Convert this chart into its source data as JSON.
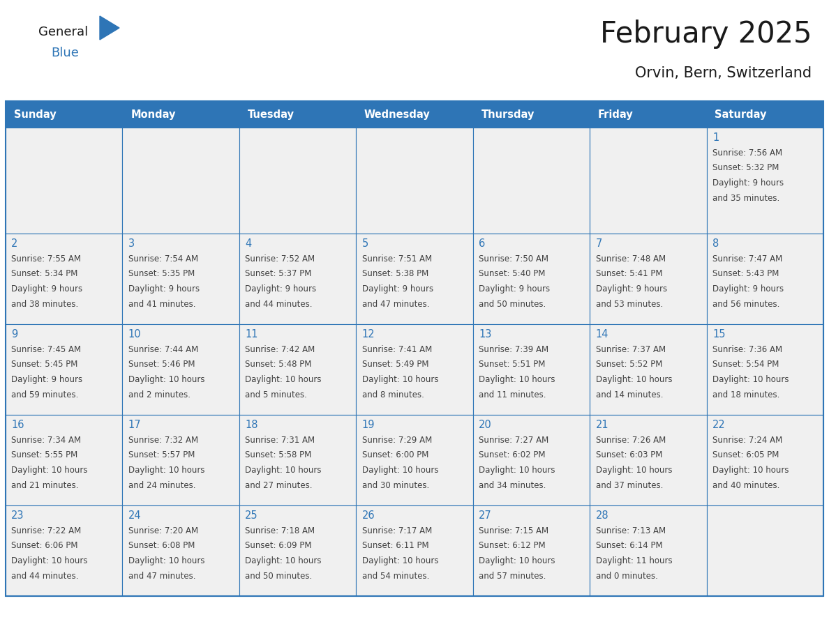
{
  "title": "February 2025",
  "subtitle": "Orvin, Bern, Switzerland",
  "days_of_week": [
    "Sunday",
    "Monday",
    "Tuesday",
    "Wednesday",
    "Thursday",
    "Friday",
    "Saturday"
  ],
  "header_bg": "#2E75B6",
  "header_text": "#FFFFFF",
  "cell_bg": "#f0f0f0",
  "border_color": "#2E75B6",
  "day_number_color": "#2E75B6",
  "info_text_color": "#404040",
  "title_color": "#1a1a1a",
  "logo_general_color": "#1a1a1a",
  "logo_blue_color": "#2E75B6",
  "weeks": [
    [
      {
        "day": null
      },
      {
        "day": null
      },
      {
        "day": null
      },
      {
        "day": null
      },
      {
        "day": null
      },
      {
        "day": null
      },
      {
        "day": 1,
        "sunrise": "7:56 AM",
        "sunset": "5:32 PM",
        "daylight": "9 hours and 35 minutes."
      }
    ],
    [
      {
        "day": 2,
        "sunrise": "7:55 AM",
        "sunset": "5:34 PM",
        "daylight": "9 hours and 38 minutes."
      },
      {
        "day": 3,
        "sunrise": "7:54 AM",
        "sunset": "5:35 PM",
        "daylight": "9 hours and 41 minutes."
      },
      {
        "day": 4,
        "sunrise": "7:52 AM",
        "sunset": "5:37 PM",
        "daylight": "9 hours and 44 minutes."
      },
      {
        "day": 5,
        "sunrise": "7:51 AM",
        "sunset": "5:38 PM",
        "daylight": "9 hours and 47 minutes."
      },
      {
        "day": 6,
        "sunrise": "7:50 AM",
        "sunset": "5:40 PM",
        "daylight": "9 hours and 50 minutes."
      },
      {
        "day": 7,
        "sunrise": "7:48 AM",
        "sunset": "5:41 PM",
        "daylight": "9 hours and 53 minutes."
      },
      {
        "day": 8,
        "sunrise": "7:47 AM",
        "sunset": "5:43 PM",
        "daylight": "9 hours and 56 minutes."
      }
    ],
    [
      {
        "day": 9,
        "sunrise": "7:45 AM",
        "sunset": "5:45 PM",
        "daylight": "9 hours and 59 minutes."
      },
      {
        "day": 10,
        "sunrise": "7:44 AM",
        "sunset": "5:46 PM",
        "daylight": "10 hours and 2 minutes."
      },
      {
        "day": 11,
        "sunrise": "7:42 AM",
        "sunset": "5:48 PM",
        "daylight": "10 hours and 5 minutes."
      },
      {
        "day": 12,
        "sunrise": "7:41 AM",
        "sunset": "5:49 PM",
        "daylight": "10 hours and 8 minutes."
      },
      {
        "day": 13,
        "sunrise": "7:39 AM",
        "sunset": "5:51 PM",
        "daylight": "10 hours and 11 minutes."
      },
      {
        "day": 14,
        "sunrise": "7:37 AM",
        "sunset": "5:52 PM",
        "daylight": "10 hours and 14 minutes."
      },
      {
        "day": 15,
        "sunrise": "7:36 AM",
        "sunset": "5:54 PM",
        "daylight": "10 hours and 18 minutes."
      }
    ],
    [
      {
        "day": 16,
        "sunrise": "7:34 AM",
        "sunset": "5:55 PM",
        "daylight": "10 hours and 21 minutes."
      },
      {
        "day": 17,
        "sunrise": "7:32 AM",
        "sunset": "5:57 PM",
        "daylight": "10 hours and 24 minutes."
      },
      {
        "day": 18,
        "sunrise": "7:31 AM",
        "sunset": "5:58 PM",
        "daylight": "10 hours and 27 minutes."
      },
      {
        "day": 19,
        "sunrise": "7:29 AM",
        "sunset": "6:00 PM",
        "daylight": "10 hours and 30 minutes."
      },
      {
        "day": 20,
        "sunrise": "7:27 AM",
        "sunset": "6:02 PM",
        "daylight": "10 hours and 34 minutes."
      },
      {
        "day": 21,
        "sunrise": "7:26 AM",
        "sunset": "6:03 PM",
        "daylight": "10 hours and 37 minutes."
      },
      {
        "day": 22,
        "sunrise": "7:24 AM",
        "sunset": "6:05 PM",
        "daylight": "10 hours and 40 minutes."
      }
    ],
    [
      {
        "day": 23,
        "sunrise": "7:22 AM",
        "sunset": "6:06 PM",
        "daylight": "10 hours and 44 minutes."
      },
      {
        "day": 24,
        "sunrise": "7:20 AM",
        "sunset": "6:08 PM",
        "daylight": "10 hours and 47 minutes."
      },
      {
        "day": 25,
        "sunrise": "7:18 AM",
        "sunset": "6:09 PM",
        "daylight": "10 hours and 50 minutes."
      },
      {
        "day": 26,
        "sunrise": "7:17 AM",
        "sunset": "6:11 PM",
        "daylight": "10 hours and 54 minutes."
      },
      {
        "day": 27,
        "sunrise": "7:15 AM",
        "sunset": "6:12 PM",
        "daylight": "10 hours and 57 minutes."
      },
      {
        "day": 28,
        "sunrise": "7:13 AM",
        "sunset": "6:14 PM",
        "daylight": "11 hours and 0 minutes."
      },
      {
        "day": null
      }
    ]
  ]
}
